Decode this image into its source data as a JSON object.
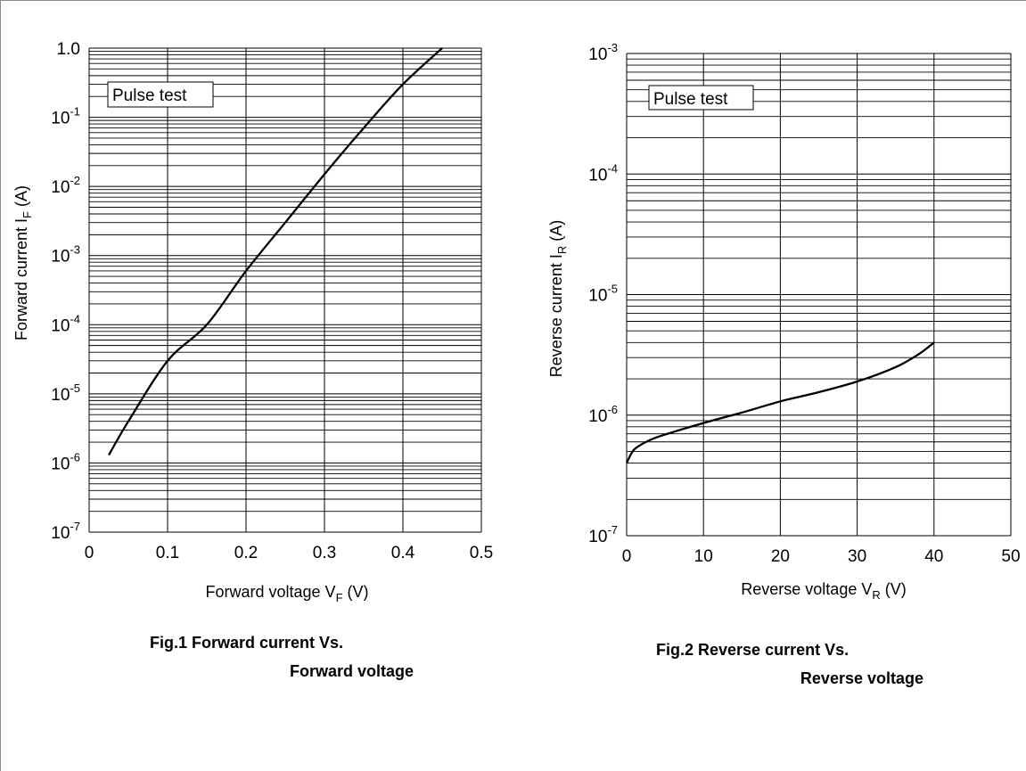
{
  "chart_data": [
    {
      "type": "line",
      "caption_line1": "Fig.1   Forward current Vs.",
      "caption_line2": "Forward voltage",
      "annotation": "Pulse test",
      "xlabel": "Forward voltage  V",
      "xlabel_sub": "F",
      "xlabel_unit": "  (V)",
      "ylabel": "Forward current  I",
      "ylabel_sub": "F",
      "ylabel_unit": "  (A)",
      "x_scale": "linear",
      "y_scale": "log",
      "xlim": [
        0,
        0.5
      ],
      "ylim": [
        1e-07,
        1.0
      ],
      "grid": true,
      "x_ticks": [
        {
          "value": 0,
          "label": "0"
        },
        {
          "value": 0.1,
          "label": "0.1"
        },
        {
          "value": 0.2,
          "label": "0.2"
        },
        {
          "value": 0.3,
          "label": "0.3"
        },
        {
          "value": 0.4,
          "label": "0.4"
        },
        {
          "value": 0.5,
          "label": "0.5"
        }
      ],
      "y_ticks": [
        {
          "value": 1e-07,
          "base": "10",
          "exp": "-7"
        },
        {
          "value": 1e-06,
          "base": "10",
          "exp": "-6"
        },
        {
          "value": 1e-05,
          "base": "10",
          "exp": "-5"
        },
        {
          "value": 0.0001,
          "base": "10",
          "exp": "-4"
        },
        {
          "value": 0.001,
          "base": "10",
          "exp": "-3"
        },
        {
          "value": 0.01,
          "base": "10",
          "exp": "-2"
        },
        {
          "value": 0.1,
          "base": "10",
          "exp": "-1"
        },
        {
          "value": 1.0,
          "base": "1.0",
          "exp": ""
        }
      ],
      "series": [
        {
          "points": [
            {
              "x": 0.025,
              "y": 1.3e-06
            },
            {
              "x": 0.05,
              "y": 4e-06
            },
            {
              "x": 0.1,
              "y": 3e-05
            },
            {
              "x": 0.15,
              "y": 0.0001
            },
            {
              "x": 0.2,
              "y": 0.0006
            },
            {
              "x": 0.25,
              "y": 0.003
            },
            {
              "x": 0.3,
              "y": 0.015
            },
            {
              "x": 0.35,
              "y": 0.07
            },
            {
              "x": 0.4,
              "y": 0.3
            },
            {
              "x": 0.45,
              "y": 1.0
            }
          ]
        }
      ]
    },
    {
      "type": "line",
      "caption_line1": "Fig.2   Reverse current Vs.",
      "caption_line2": "Reverse voltage",
      "annotation": "Pulse test",
      "xlabel": "Reverse voltage  V",
      "xlabel_sub": "R",
      "xlabel_unit": "  (V)",
      "ylabel": "Reverse current  I",
      "ylabel_sub": "R",
      "ylabel_unit": "  (A)",
      "x_scale": "linear",
      "y_scale": "log",
      "xlim": [
        0,
        50
      ],
      "ylim": [
        1e-07,
        0.001
      ],
      "grid": true,
      "x_ticks": [
        {
          "value": 0,
          "label": "0"
        },
        {
          "value": 10,
          "label": "10"
        },
        {
          "value": 20,
          "label": "20"
        },
        {
          "value": 30,
          "label": "30"
        },
        {
          "value": 40,
          "label": "40"
        },
        {
          "value": 50,
          "label": "50"
        }
      ],
      "y_ticks": [
        {
          "value": 1e-07,
          "base": "10",
          "exp": "-7"
        },
        {
          "value": 1e-06,
          "base": "10",
          "exp": "-6"
        },
        {
          "value": 1e-05,
          "base": "10",
          "exp": "-5"
        },
        {
          "value": 0.0001,
          "base": "10",
          "exp": "-4"
        },
        {
          "value": 0.001,
          "base": "10",
          "exp": "-3"
        }
      ],
      "series": [
        {
          "points": [
            {
              "x": 0,
              "y": 4e-07
            },
            {
              "x": 1,
              "y": 5.2e-07
            },
            {
              "x": 3,
              "y": 6.2e-07
            },
            {
              "x": 5,
              "y": 6.9e-07
            },
            {
              "x": 10,
              "y": 8.6e-07
            },
            {
              "x": 15,
              "y": 1.05e-06
            },
            {
              "x": 20,
              "y": 1.3e-06
            },
            {
              "x": 25,
              "y": 1.55e-06
            },
            {
              "x": 30,
              "y": 1.9e-06
            },
            {
              "x": 35,
              "y": 2.5e-06
            },
            {
              "x": 38,
              "y": 3.2e-06
            },
            {
              "x": 40,
              "y": 4e-06
            }
          ]
        }
      ]
    }
  ]
}
